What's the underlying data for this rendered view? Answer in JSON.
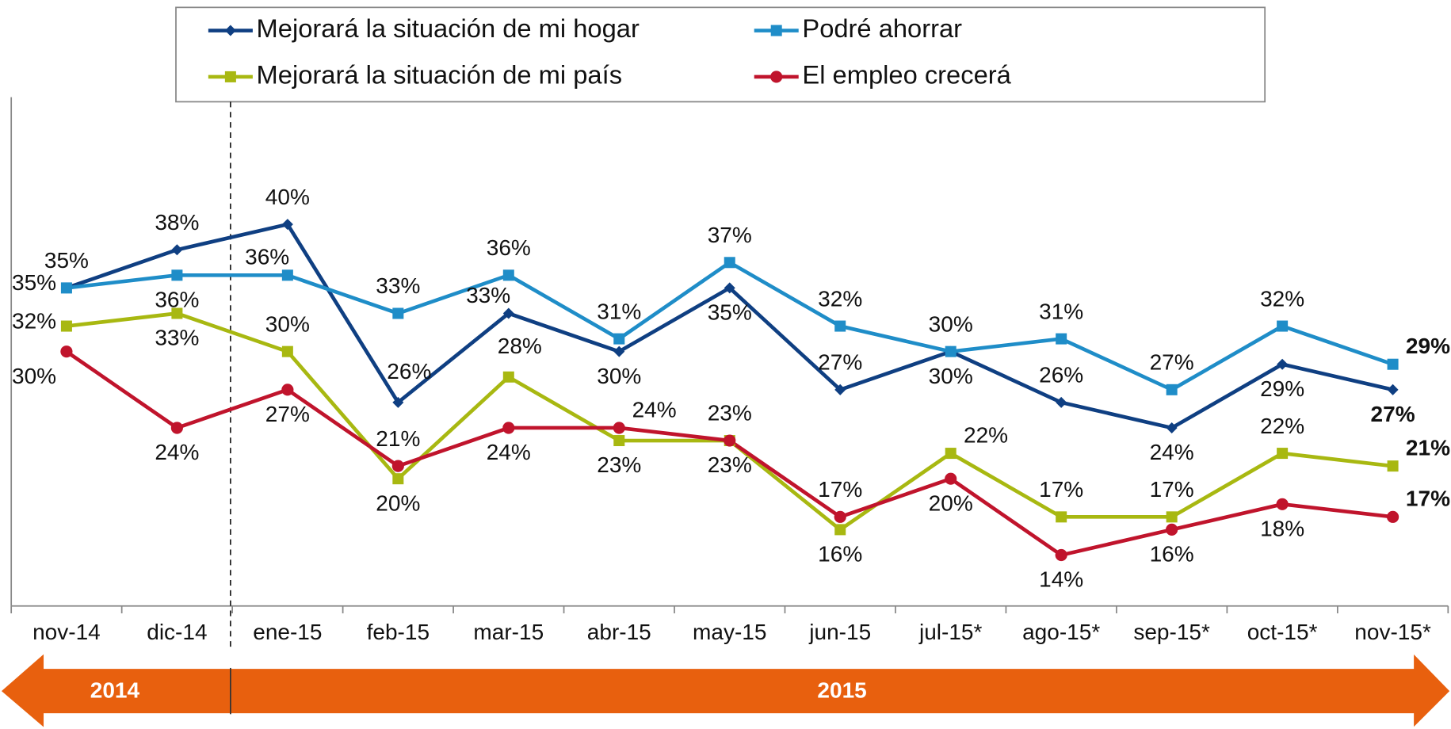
{
  "chart_data": {
    "type": "line",
    "categories": [
      "nov-14",
      "dic-14",
      "ene-15",
      "feb-15",
      "mar-15",
      "abr-15",
      "may-15",
      "jun-15",
      "jul-15*",
      "ago-15*",
      "sep-15*",
      "oct-15*",
      "nov-15*"
    ],
    "series": [
      {
        "name": "Mejorará la situación de mi hogar",
        "color": "#0f3f82",
        "marker": "diamond",
        "values": [
          35,
          38,
          40,
          26,
          33,
          30,
          35,
          27,
          30,
          26,
          24,
          29,
          27
        ],
        "value_labels": [
          "35%",
          "38%",
          "40%",
          "26%",
          "33%",
          "30%",
          "35%",
          "27%",
          "30%",
          "26%",
          "24%",
          "29%",
          "27%"
        ]
      },
      {
        "name": "Podré ahorrar",
        "color": "#1f8dc8",
        "marker": "square",
        "values": [
          35,
          36,
          36,
          33,
          36,
          31,
          37,
          32,
          30,
          31,
          27,
          32,
          29
        ],
        "value_labels": [
          "35%",
          "36%",
          "36%",
          "33%",
          "36%",
          "31%",
          "37%",
          "32%",
          "30%",
          "31%",
          "27%",
          "32%",
          "29%"
        ]
      },
      {
        "name": "Mejorará la situación de mi país",
        "color": "#a8b811",
        "marker": "square",
        "values": [
          32,
          33,
          30,
          20,
          28,
          23,
          23,
          16,
          22,
          17,
          17,
          22,
          21
        ],
        "value_labels": [
          "32%",
          "33%",
          "30%",
          "20%",
          "28%",
          "23%",
          "23%",
          "16%",
          "22%",
          "17%",
          "17%",
          "22%",
          "21%"
        ]
      },
      {
        "name": "El empleo crecerá",
        "color": "#c0142c",
        "marker": "circle",
        "values": [
          30,
          24,
          27,
          21,
          24,
          24,
          23,
          17,
          20,
          14,
          16,
          18,
          17
        ],
        "value_labels": [
          "30%",
          "24%",
          "27%",
          "21%",
          "24%",
          "24%",
          "23%",
          "17%",
          "20%",
          "14%",
          "16%",
          "18%",
          "17%"
        ]
      }
    ],
    "ylim": [
      10,
      50
    ],
    "timeline": [
      "2014",
      "2015"
    ],
    "timeline_color": "#e8600e"
  }
}
